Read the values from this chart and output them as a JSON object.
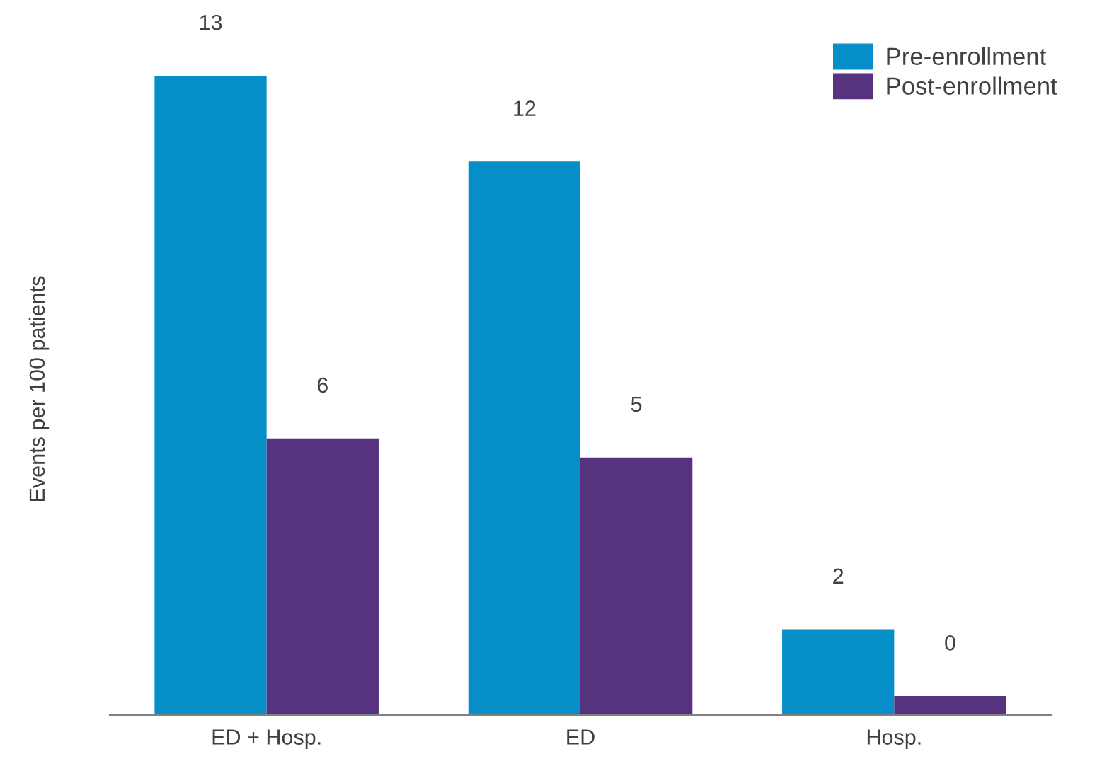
{
  "chart_data": {
    "type": "bar",
    "ylabel": "Events per 100 patients",
    "categories": [
      "ED + Hosp.",
      "ED",
      "Hosp."
    ],
    "series": [
      {
        "name": "Pre-enrollment",
        "color": "#068ec9",
        "values": [
          13.4,
          11.6,
          1.8
        ],
        "value_labels": [
          "13",
          "12",
          "2"
        ]
      },
      {
        "name": "Post-enrollment",
        "color": "#56327f",
        "values": [
          5.8,
          5.4,
          0.4
        ],
        "value_labels": [
          "6",
          "5",
          "0"
        ]
      }
    ],
    "legend": "top right",
    "grid": false
  }
}
